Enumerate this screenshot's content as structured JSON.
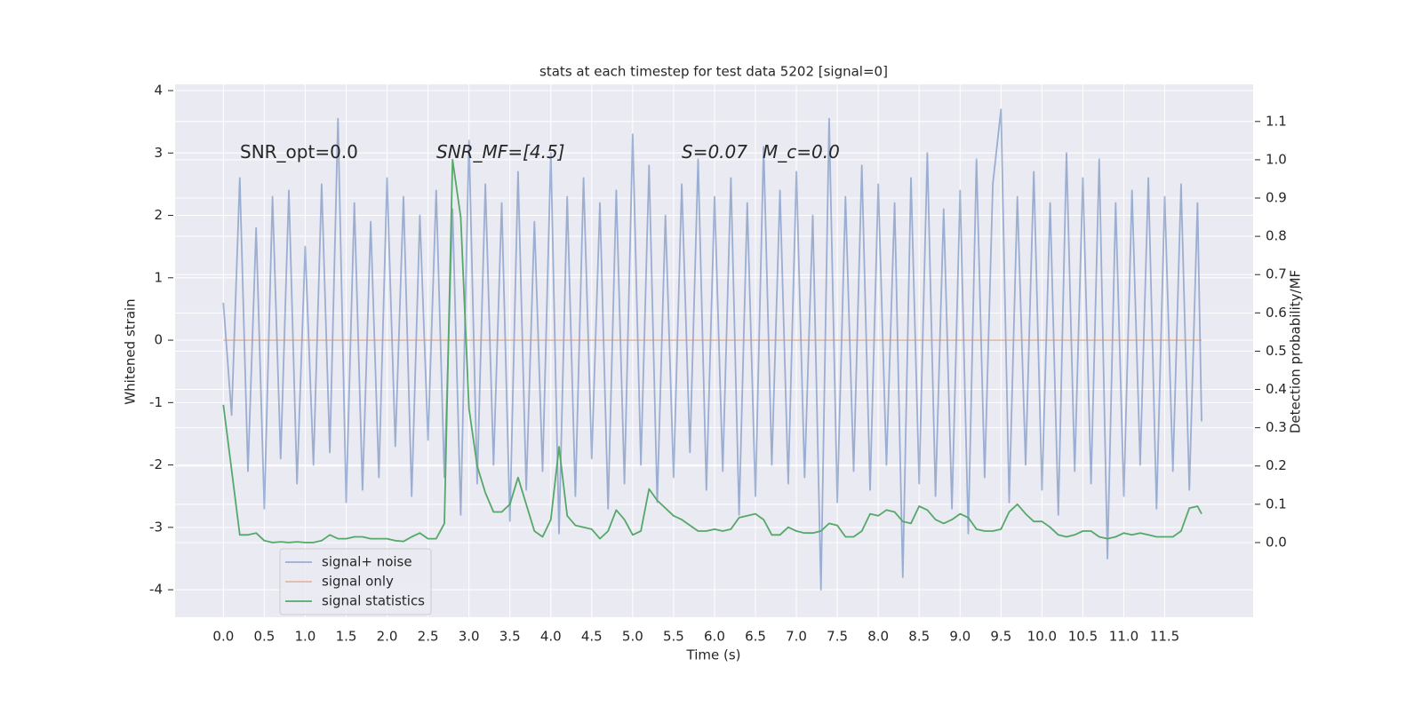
{
  "chart_data": {
    "type": "line",
    "title": "stats at each timestep for test data 5202 [signal=0]",
    "xlabel": "Time (s)",
    "ylabel": "Whitened strain",
    "y2label": "Detection probability/MF",
    "annotations": [
      "SNR_opt=0.0",
      "SNR_MF=[4.5]",
      "S=0.07",
      "M_c=0.0"
    ],
    "x": [
      0,
      0.1,
      0.2,
      0.3,
      0.4,
      0.5,
      0.6,
      0.7,
      0.8,
      0.9,
      1.0,
      1.1,
      1.2,
      1.3,
      1.4,
      1.5,
      1.6,
      1.7,
      1.8,
      1.9,
      2.0,
      2.1,
      2.2,
      2.3,
      2.4,
      2.5,
      2.6,
      2.7,
      2.8,
      2.9,
      3.0,
      3.1,
      3.2,
      3.3,
      3.4,
      3.5,
      3.6,
      3.7,
      3.8,
      3.9,
      4.0,
      4.1,
      4.2,
      4.3,
      4.4,
      4.5,
      4.6,
      4.7,
      4.8,
      4.9,
      5.0,
      5.1,
      5.2,
      5.3,
      5.4,
      5.5,
      5.6,
      5.7,
      5.8,
      5.9,
      6.0,
      6.1,
      6.2,
      6.3,
      6.4,
      6.5,
      6.6,
      6.7,
      6.8,
      6.9,
      7.0,
      7.1,
      7.2,
      7.3,
      7.4,
      7.5,
      7.6,
      7.7,
      7.8,
      7.9,
      8.0,
      8.1,
      8.2,
      8.3,
      8.4,
      8.5,
      8.6,
      8.7,
      8.8,
      8.9,
      9.0,
      9.1,
      9.2,
      9.3,
      9.4,
      9.5,
      9.6,
      9.7,
      9.8,
      9.9,
      10.0,
      10.1,
      10.2,
      10.3,
      10.4,
      10.5,
      10.6,
      10.7,
      10.8,
      10.9,
      11.0,
      11.1,
      11.2,
      11.3,
      11.4,
      11.5,
      11.6,
      11.7,
      11.8,
      11.9,
      11.95
    ],
    "series": [
      {
        "name": "signal+ noise",
        "color": "#4c72b0",
        "opacity": 0.5,
        "values": [
          0.6,
          -1.2,
          2.6,
          -2.1,
          1.8,
          -2.7,
          2.3,
          -1.9,
          2.4,
          -2.3,
          1.5,
          -2.0,
          2.5,
          -1.8,
          3.55,
          -2.6,
          2.2,
          -2.4,
          1.9,
          -2.2,
          2.6,
          -1.7,
          2.3,
          -2.5,
          2.0,
          -1.6,
          2.4,
          -2.2,
          2.1,
          -2.8,
          3.2,
          -2.3,
          2.5,
          -2.0,
          2.2,
          -2.9,
          2.7,
          -2.4,
          1.9,
          -2.1,
          3.0,
          -3.1,
          2.3,
          -2.5,
          2.6,
          -1.9,
          2.2,
          -2.7,
          2.4,
          -2.3,
          3.3,
          -2.0,
          2.8,
          -2.6,
          2.0,
          -2.2,
          2.5,
          -1.8,
          2.9,
          -2.4,
          2.3,
          -2.1,
          2.6,
          -2.8,
          2.2,
          -2.5,
          3.1,
          -2.0,
          2.4,
          -2.3,
          2.7,
          -2.2,
          2.0,
          -4.0,
          3.55,
          -2.6,
          2.3,
          -2.1,
          2.8,
          -2.4,
          2.5,
          -2.0,
          2.2,
          -3.8,
          2.6,
          -2.3,
          3.0,
          -2.5,
          2.1,
          -2.7,
          2.4,
          -3.1,
          2.9,
          -2.2,
          2.5,
          3.7,
          -2.6,
          2.3,
          -2.0,
          2.7,
          -2.4,
          2.2,
          -2.8,
          3.0,
          -2.1,
          2.6,
          -2.3,
          2.9,
          -3.5,
          2.2,
          -2.5,
          2.4,
          -2.0,
          2.6,
          -2.7,
          2.3,
          -2.1,
          2.5,
          -2.4,
          2.2,
          -1.3
        ]
      },
      {
        "name": "signal only",
        "color": "#dd8452",
        "opacity": 0.5,
        "x": [
          0,
          11.95
        ],
        "values": [
          0,
          0
        ]
      },
      {
        "name": "signal statistics",
        "color": "#55a868",
        "opacity": 1,
        "axis": "y2",
        "values": [
          0.36,
          0.19,
          0.02,
          0.02,
          0.025,
          0.005,
          0,
          0.002,
          0,
          0.002,
          0,
          0,
          0.005,
          0.02,
          0.01,
          0.01,
          0.015,
          0.015,
          0.01,
          0.01,
          0.01,
          0.005,
          0.003,
          0.015,
          0.025,
          0.01,
          0.01,
          0.05,
          1.0,
          0.85,
          0.35,
          0.2,
          0.13,
          0.08,
          0.08,
          0.1,
          0.17,
          0.1,
          0.03,
          0.015,
          0.06,
          0.25,
          0.07,
          0.045,
          0.04,
          0.035,
          0.01,
          0.03,
          0.085,
          0.06,
          0.02,
          0.03,
          0.14,
          0.11,
          0.09,
          0.07,
          0.06,
          0.045,
          0.03,
          0.03,
          0.035,
          0.03,
          0.035,
          0.065,
          0.07,
          0.075,
          0.06,
          0.02,
          0.02,
          0.04,
          0.03,
          0.025,
          0.025,
          0.03,
          0.05,
          0.045,
          0.015,
          0.015,
          0.03,
          0.075,
          0.07,
          0.085,
          0.08,
          0.055,
          0.05,
          0.095,
          0.085,
          0.06,
          0.05,
          0.06,
          0.075,
          0.065,
          0.035,
          0.03,
          0.03,
          0.035,
          0.08,
          0.1,
          0.075,
          0.055,
          0.055,
          0.04,
          0.02,
          0.015,
          0.02,
          0.03,
          0.03,
          0.015,
          0.01,
          0.015,
          0.025,
          0.02,
          0.025,
          0.02,
          0.015,
          0.015,
          0.015,
          0.03,
          0.09,
          0.095,
          0.075
        ]
      }
    ],
    "xlim": [
      -0.59,
      12.58
    ],
    "ylim": [
      -4.44,
      4.1
    ],
    "y2lim": [
      -0.195,
      1.197
    ],
    "xticks": [
      {
        "value": 0,
        "label": "0.0"
      },
      0.5,
      {
        "value": 1,
        "label": "1.0"
      },
      1.5,
      {
        "value": 2,
        "label": "2.0"
      },
      2.5,
      {
        "value": 3,
        "label": "3.0"
      },
      3.5,
      {
        "value": 4,
        "label": "4.0"
      },
      4.5,
      {
        "value": 5,
        "label": "5.0"
      },
      5.5,
      {
        "value": 6,
        "label": "6.0"
      },
      6.5,
      {
        "value": 7,
        "label": "7.0"
      },
      7.5,
      {
        "value": 8,
        "label": "8.0"
      },
      8.5,
      {
        "value": 9,
        "label": "9.0"
      },
      9.5,
      {
        "value": 10,
        "label": "10.0"
      },
      10.5,
      {
        "value": 11,
        "label": "11.0"
      },
      11.5
    ],
    "yticks": [
      -4,
      -3,
      -2,
      -1,
      0,
      1,
      2,
      3,
      4
    ],
    "y2ticks": [
      {
        "value": 0,
        "label": "0.0"
      },
      0.1,
      0.2,
      0.3,
      0.4,
      0.5,
      0.6,
      0.7,
      0.8,
      0.9,
      {
        "value": 1,
        "label": "1.0"
      },
      1.1
    ],
    "grid": true,
    "legend": "lower left"
  }
}
